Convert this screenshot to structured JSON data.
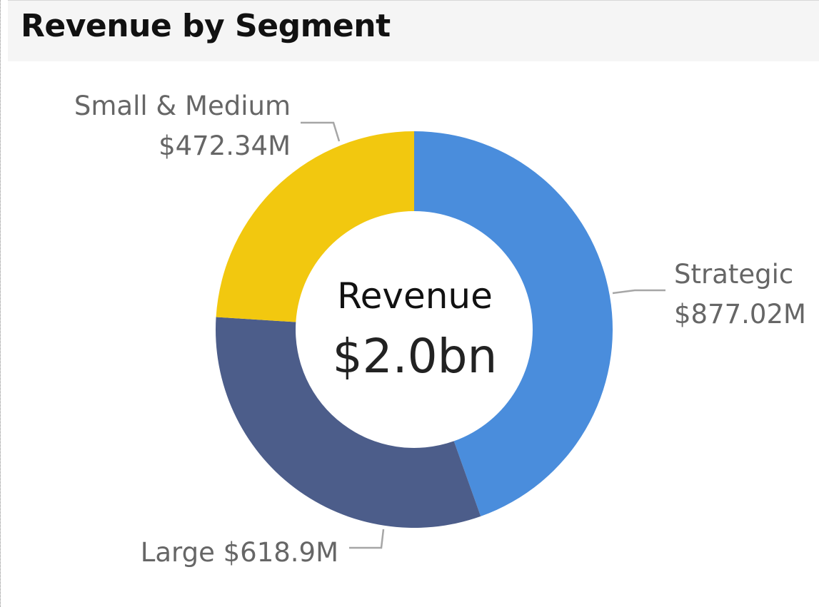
{
  "header": {
    "title": "Revenue by Segment"
  },
  "chart_data": {
    "type": "donut",
    "title": "Revenue by Segment",
    "center": {
      "label": "Revenue",
      "value": "$2.0bn"
    },
    "slices": [
      {
        "name": "Strategic",
        "value": 877.02,
        "display": "$877.02M",
        "color": "#4A8DDC"
      },
      {
        "name": "Large",
        "value": 618.9,
        "display": "$618.9M",
        "color": "#4C5D8A"
      },
      {
        "name": "Small & Medium",
        "value": 472.34,
        "display": "$472.34M",
        "color": "#F2C80F"
      }
    ],
    "unit": "M",
    "legend": "none"
  }
}
